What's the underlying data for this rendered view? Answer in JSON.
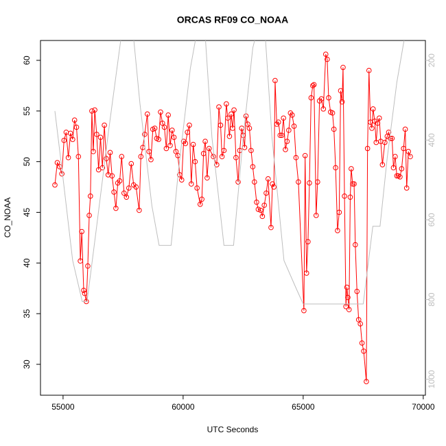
{
  "chart_data": {
    "type": "line",
    "title": "ORCAS RF09 CO_NOAA",
    "xlabel": "UTC Seconds",
    "ylabel": "CO_NOAA",
    "xlim": [
      54060,
      70090
    ],
    "ylim": [
      26.95,
      61.96
    ],
    "y2lim": [
      1040,
      150
    ],
    "xticks": [
      55000,
      60000,
      65000,
      70000
    ],
    "yticks": [
      30,
      35,
      40,
      45,
      50,
      55,
      60
    ],
    "y2ticks": [
      200,
      400,
      600,
      800,
      1000
    ],
    "x": [
      54660,
      54760,
      54860,
      54950,
      55040,
      55130,
      55220,
      55310,
      55400,
      55480,
      55560,
      55640,
      55720,
      55780,
      55860,
      55900,
      55970,
      56030,
      56090,
      56140,
      56200,
      56260,
      56320,
      56400,
      56480,
      56560,
      56640,
      56720,
      56800,
      56880,
      56960,
      57040,
      57120,
      57200,
      57280,
      57360,
      57440,
      57540,
      57640,
      57740,
      57840,
      57940,
      58040,
      58170,
      58240,
      58320,
      58400,
      58510,
      58580,
      58660,
      58740,
      58820,
      58900,
      58980,
      59060,
      59140,
      59220,
      59300,
      59380,
      59460,
      59540,
      59620,
      59700,
      59780,
      59860,
      59940,
      60020,
      60100,
      60180,
      60260,
      60340,
      60420,
      60500,
      60580,
      60710,
      60780,
      60850,
      60920,
      61000,
      61080,
      61260,
      61400,
      61490,
      61560,
      61620,
      61700,
      61800,
      61860,
      61930,
      62000,
      62060,
      62120,
      62200,
      62290,
      62360,
      62440,
      62500,
      62560,
      62620,
      62690,
      62760,
      62830,
      62900,
      62970,
      63060,
      63130,
      63230,
      63300,
      63380,
      63460,
      63540,
      63660,
      63720,
      63780,
      63830,
      63900,
      63970,
      64040,
      64110,
      64180,
      64260,
      64330,
      64400,
      64470,
      64540,
      64620,
      64700,
      64800,
      65030,
      65080,
      65140,
      65200,
      65260,
      65330,
      65400,
      65450,
      65540,
      65600,
      65680,
      65760,
      65840,
      65940,
      66000,
      66060,
      66140,
      66220,
      66280,
      66350,
      66430,
      66500,
      66560,
      66620,
      66660,
      66720,
      66780,
      66820,
      66860,
      66910,
      66960,
      67000,
      67060,
      67120,
      67170,
      67240,
      67310,
      67380,
      67450,
      67520,
      67630,
      67680,
      67740,
      67800,
      67860,
      67910,
      67980,
      68040,
      68100,
      68170,
      68230,
      68300,
      68400,
      68500,
      68560,
      68630,
      68700,
      68760,
      68830,
      68900,
      68960,
      69030,
      69100,
      69180,
      69250,
      69310,
      69380,
      69460
    ],
    "series": [
      {
        "name": "CO_NOAA",
        "color": "#ff0000",
        "values": [
          47.7,
          49.9,
          49.5,
          48.8,
          52.1,
          52.9,
          50.4,
          52.8,
          52.2,
          54.1,
          53.4,
          50.5,
          40.2,
          43.1,
          37.3,
          37.0,
          36.2,
          39.7,
          44.7,
          46.6,
          55.0,
          51.0,
          55.1,
          52.7,
          49.2,
          52.4,
          49.4,
          53.6,
          50.3,
          48.7,
          50.9,
          48.6,
          47.0,
          45.4,
          47.9,
          48.1,
          50.5,
          46.9,
          46.5,
          47.4,
          49.8,
          47.7,
          47.5,
          45.2,
          50.5,
          51.4,
          52.7,
          54.7,
          51.0,
          50.2,
          53.2,
          53.3,
          52.3,
          52.2,
          54.9,
          53.8,
          53.4,
          51.3,
          54.6,
          51.6,
          53.1,
          52.4,
          51.0,
          50.6,
          48.7,
          48.2,
          52.0,
          51.8,
          52.9,
          53.6,
          47.8,
          51.7,
          50.0,
          47.4,
          45.8,
          46.3,
          50.8,
          52.0,
          48.4,
          51.3,
          50.5,
          49.7,
          55.4,
          53.6,
          50.5,
          51.1,
          55.7,
          54.3,
          52.5,
          54.7,
          53.3,
          55.1,
          50.4,
          48.0,
          51.1,
          53.3,
          52.6,
          51.4,
          54.5,
          53.7,
          53.3,
          51.1,
          49.5,
          48.0,
          46.0,
          45.3,
          45.2,
          44.6,
          45.7,
          46.9,
          48.3,
          43.5,
          47.8,
          47.5,
          58.0,
          53.7,
          53.9,
          52.6,
          52.6,
          54.3,
          51.2,
          52.0,
          53.1,
          54.8,
          54.6,
          53.5,
          50.4,
          48.0,
          35.3,
          50.6,
          39.0,
          42.1,
          47.9,
          56.3,
          57.5,
          57.6,
          44.7,
          48.0,
          56.0,
          56.2,
          55.2,
          60.6,
          60.1,
          56.3,
          54.9,
          54.8,
          53.2,
          49.4,
          43.2,
          45.0,
          57.0,
          55.9,
          59.3,
          46.6,
          35.7,
          37.6,
          36.6,
          35.4,
          46.5,
          49.3,
          47.8,
          47.8,
          41.8,
          37.2,
          34.4,
          34.0,
          32.1,
          31.3,
          28.3,
          51.3,
          59.0,
          53.9,
          53.3,
          55.2,
          54.0,
          51.9,
          53.8,
          54.3,
          52.0,
          49.7,
          51.9,
          52.5,
          52.9,
          52.3,
          52.3,
          49.4,
          50.5,
          48.6,
          48.6,
          48.5,
          49.3,
          51.3,
          53.2,
          47.4,
          51.0,
          50.5
        ]
      },
      {
        "color": "#bebebe",
        "axis": "y2",
        "x": [
          54660,
          55000,
          55400,
          55800,
          56000,
          56400,
          56900,
          57400,
          57600,
          57900,
          58200,
          58700,
          59000,
          59500,
          59800,
          60300,
          60600,
          60900,
          61200,
          61700,
          62100,
          62500,
          62900,
          63100,
          63400,
          63700,
          64200,
          64700,
          65000,
          67500,
          67900,
          68200,
          68500,
          68900,
          69200,
          69300
        ],
        "values": [
          327,
          496,
          702,
          805,
          805,
          616,
          375,
          150,
          120,
          120,
          307,
          565,
          664,
          664,
          479,
          220,
          120,
          120,
          393,
          664,
          664,
          393,
          169,
          120,
          120,
          393,
          702,
          771,
          811,
          811,
          616,
          616,
          444,
          255,
          150,
          130
        ]
      }
    ]
  }
}
